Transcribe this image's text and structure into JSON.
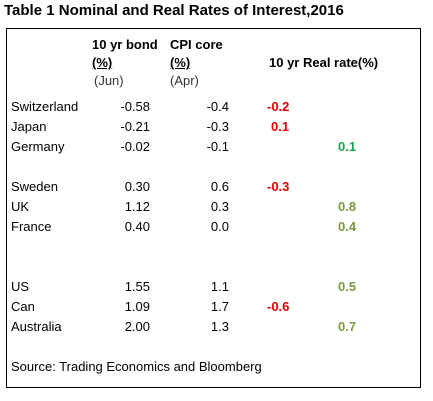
{
  "title": "Table 1  Nominal and Real Rates of Interest,2016",
  "headers": {
    "bond_line1": "10 yr bond",
    "bond_line2": "(%)",
    "bond_line3": "(Jun)",
    "cpi_line1": "CPI core",
    "cpi_line2": "(%)",
    "cpi_line3": "(Apr)",
    "real_rate": "10 yr Real rate(%)"
  },
  "rows": [
    {
      "country": "Switzerland",
      "bond": "-0.58",
      "cpi": "-0.4",
      "neg": "-0.2",
      "pos": ""
    },
    {
      "country": "Japan",
      "bond": "-0.21",
      "cpi": "-0.3",
      "neg": "0.1",
      "pos": ""
    },
    {
      "country": "Germany",
      "bond": "-0.02",
      "cpi": "-0.1",
      "neg": "",
      "pos": "0.1"
    },
    {
      "country": "Sweden",
      "bond": "0.30",
      "cpi": "0.6",
      "neg": "-0.3",
      "pos": ""
    },
    {
      "country": "UK",
      "bond": "1.12",
      "cpi": "0.3",
      "neg": "",
      "pos": "0.8"
    },
    {
      "country": "France",
      "bond": "0.40",
      "cpi": "0.0",
      "neg": "",
      "pos": "0.4"
    },
    {
      "country": "US",
      "bond": "1.55",
      "cpi": "1.1",
      "neg": "",
      "pos": "0.5"
    },
    {
      "country": "Can",
      "bond": "1.09",
      "cpi": "1.7",
      "neg": "-0.6",
      "pos": ""
    },
    {
      "country": "Australia",
      "bond": "2.00",
      "cpi": "1.3",
      "neg": "",
      "pos": "0.7"
    }
  ],
  "source": "Source: Trading Economics and Bloomberg",
  "colors": {
    "negative": "#e60000",
    "positive_green": "#1aa64b",
    "positive_olive": "#7a9a3a"
  }
}
